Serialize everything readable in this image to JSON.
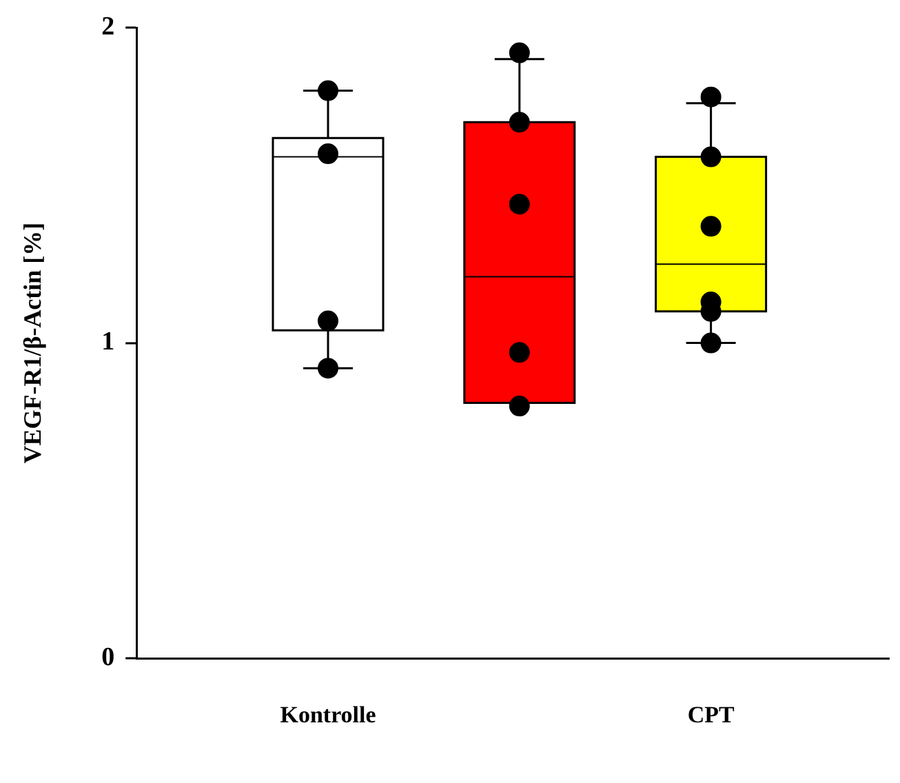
{
  "chart_data": {
    "type": "box",
    "ylabel": "VEGF-R1/β-Actin [%]",
    "categories": [
      "Kontrolle",
      null,
      "CPT"
    ],
    "ylim": [
      0,
      2
    ],
    "yticks": [
      0,
      1,
      2
    ],
    "grid": false,
    "legend": false,
    "marker": "circle",
    "boxes": [
      {
        "low": 0.92,
        "q1": 1.04,
        "median": 1.59,
        "q3": 1.65,
        "high": 1.8
      },
      {
        "low": 0.81,
        "q1": 0.81,
        "median": 1.21,
        "q3": 1.7,
        "high": 1.9
      },
      {
        "low": 1.0,
        "q1": 1.1,
        "median": 1.25,
        "q3": 1.59,
        "high": 1.76
      }
    ],
    "colors": [
      "#ffffff",
      "#ff0000",
      "#ffff00"
    ],
    "series": [
      {
        "type": "scatter",
        "color": "#000000",
        "x": [
          "Kontrolle",
          "Kontrolle",
          "Kontrolle",
          "Kontrolle",
          null,
          null,
          null,
          null,
          null,
          "CPT",
          "CPT",
          "CPT",
          "CPT",
          "CPT",
          "CPT"
        ],
        "values": [
          1.8,
          1.6,
          1.07,
          0.92,
          1.92,
          1.7,
          1.44,
          0.97,
          0.8,
          1.78,
          1.59,
          1.37,
          1.13,
          1.1,
          1.0
        ]
      }
    ]
  }
}
